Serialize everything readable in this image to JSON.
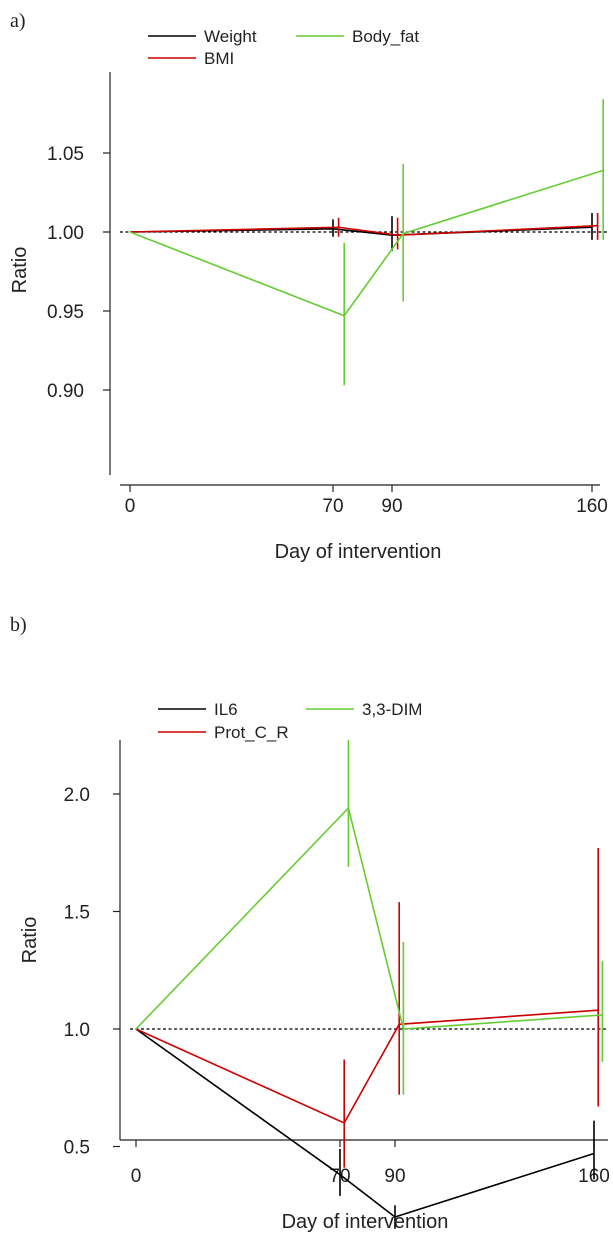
{
  "chart_data": [
    {
      "panel_label": "a)",
      "type": "line",
      "xlabel": "Day of intervention",
      "ylabel": "Ratio",
      "x_ticks": [
        0,
        70,
        90,
        160
      ],
      "x_tick_labels": [
        "0",
        "70",
        "90",
        "160"
      ],
      "y_ticks": [
        0.9,
        0.95,
        1.0,
        1.05
      ],
      "y_tick_labels": [
        "0.90",
        "0.95",
        "1.00",
        "1.05"
      ],
      "xlim": [
        -5,
        165
      ],
      "ylim": [
        0.895,
        1.08
      ],
      "reference_line": 1.0,
      "legend_position": "top",
      "series": [
        {
          "name": "Weight",
          "color": "#000000",
          "x": [
            0,
            70,
            90,
            160
          ],
          "y": [
            1.0,
            1.002,
            0.998,
            1.003
          ],
          "error_low": [
            null,
            0.997,
            0.988,
            0.995
          ],
          "error_high": [
            null,
            1.008,
            1.01,
            1.012
          ],
          "offset_days": 0
        },
        {
          "name": "BMI",
          "color": "#cc0000",
          "x": [
            0,
            70,
            90,
            160
          ],
          "y": [
            1.0,
            1.003,
            0.998,
            1.004
          ],
          "error_low": [
            null,
            0.997,
            0.989,
            0.995
          ],
          "error_high": [
            null,
            1.009,
            1.009,
            1.012
          ],
          "offset_days": 2
        },
        {
          "name": "Body_fat",
          "color": "#66cc33",
          "x": [
            0,
            70,
            90,
            160
          ],
          "y": [
            1.0,
            0.947,
            0.999,
            1.039
          ],
          "error_low": [
            null,
            0.903,
            0.956,
            0.995
          ],
          "error_high": [
            null,
            0.993,
            1.043,
            1.084
          ],
          "offset_days": 4
        }
      ]
    },
    {
      "panel_label": "b)",
      "type": "line",
      "xlabel": "Day of intervention",
      "ylabel": "Ratio",
      "x_ticks": [
        0,
        70,
        90,
        160
      ],
      "x_tick_labels": [
        "0",
        "70",
        "90",
        "160"
      ],
      "y_ticks": [
        0.5,
        1.0,
        1.5,
        2.0
      ],
      "y_tick_labels": [
        "0.5",
        "1.0",
        "1.5",
        "2.0"
      ],
      "xlim": [
        -5,
        165
      ],
      "ylim": [
        0.12,
        2.33
      ],
      "reference_line": 1.0,
      "legend_position": "top",
      "series": [
        {
          "name": "IL6",
          "color": "#000000",
          "x": [
            0,
            70,
            90,
            160
          ],
          "y": [
            1.0,
            0.38,
            0.2,
            0.47
          ],
          "error_low": [
            null,
            0.29,
            0.15,
            0.36
          ],
          "error_high": [
            null,
            0.49,
            0.25,
            0.61
          ],
          "offset_days": 0
        },
        {
          "name": "Prot_C_R",
          "color": "#cc0000",
          "x": [
            0,
            70,
            90,
            160
          ],
          "y": [
            1.0,
            0.6,
            1.02,
            1.08
          ],
          "error_low": [
            null,
            0.41,
            0.72,
            0.67
          ],
          "error_high": [
            null,
            0.87,
            1.54,
            1.77
          ],
          "offset_days": 1.5
        },
        {
          "name": "3,3-DIM",
          "color": "#66cc33",
          "x": [
            0,
            70,
            90,
            160
          ],
          "y": [
            1.0,
            1.94,
            1.0,
            1.06
          ],
          "error_low": [
            null,
            1.69,
            0.72,
            0.86
          ],
          "error_high": [
            null,
            2.23,
            1.37,
            1.29
          ],
          "offset_days": 3
        }
      ]
    }
  ]
}
